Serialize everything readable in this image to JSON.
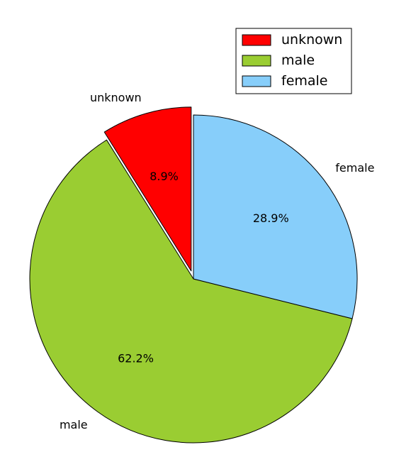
{
  "chart_data": {
    "type": "pie",
    "slices": [
      {
        "label": "unknown",
        "value": 8.9,
        "pct_label": "8.9%",
        "color": "#ff0000",
        "exploded": true
      },
      {
        "label": "male",
        "value": 62.2,
        "pct_label": "62.2%",
        "color": "#9acd32",
        "exploded": false
      },
      {
        "label": "female",
        "value": 28.9,
        "pct_label": "28.9%",
        "color": "#87cefa",
        "exploded": false
      }
    ],
    "start_angle_deg": 90,
    "direction": "counterclockwise",
    "legend": {
      "placement": "upper-right",
      "entries": [
        "unknown",
        "male",
        "female"
      ]
    }
  }
}
